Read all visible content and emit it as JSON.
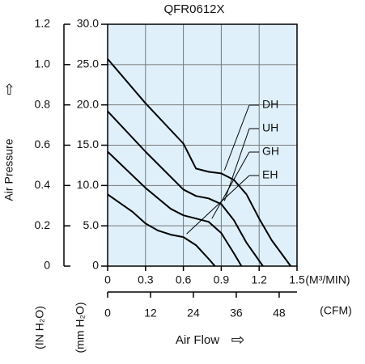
{
  "chart_data": {
    "type": "line",
    "title": "QFR0612X",
    "y_label": "Air Pressure",
    "y_unit": "(mm H₂O)",
    "y2_unit": "(IN H₂O)",
    "x_label": "Air Flow",
    "x_unit": "(M³/MIN)",
    "x2_unit": "(CFM)",
    "xlim": [
      0,
      1.5
    ],
    "xticks": [
      0,
      0.3,
      0.6,
      0.9,
      1.2,
      1.5
    ],
    "x2lim": [
      0,
      53
    ],
    "x2ticks": [
      0,
      12,
      24,
      36,
      48
    ],
    "ylim": [
      0,
      30
    ],
    "yticks": [
      0,
      {
        "value": 5,
        "label": "5.0"
      },
      {
        "value": 10,
        "label": "10.0"
      },
      {
        "value": 15,
        "label": "15.0"
      },
      {
        "value": 20,
        "label": "20.0"
      },
      {
        "value": 25,
        "label": "25.0"
      },
      {
        "value": 30,
        "label": "30.0"
      }
    ],
    "y2lim": [
      0,
      1.2
    ],
    "y2ticks": [
      0,
      0.2,
      0.4,
      0.6,
      0.8,
      {
        "value": 1,
        "label": "1.0"
      },
      1.2
    ],
    "grid": true,
    "series": [
      {
        "name": "DH",
        "color": "#000000",
        "x": [
          0,
          0.3,
          0.6,
          0.7,
          0.8,
          0.9,
          1.0,
          1.1,
          1.2,
          1.3,
          1.38,
          1.45
        ],
        "values": [
          25.7,
          20.2,
          15.2,
          12.1,
          11.7,
          11.5,
          10.7,
          8.9,
          5.9,
          3.2,
          1.5,
          0
        ]
      },
      {
        "name": "UH",
        "color": "#000000",
        "x": [
          0,
          0.3,
          0.6,
          0.7,
          0.8,
          0.9,
          1.0,
          1.1,
          1.23
        ],
        "values": [
          19.2,
          14.2,
          9.5,
          8.7,
          8.4,
          7.7,
          5.7,
          2.9,
          0
        ]
      },
      {
        "name": "GH",
        "color": "#000000",
        "x": [
          0,
          0.3,
          0.5,
          0.6,
          0.7,
          0.8,
          0.9,
          1.0,
          1.06
        ],
        "values": [
          14.2,
          9.7,
          7.1,
          6.3,
          5.9,
          5.5,
          4.1,
          1.6,
          0
        ]
      },
      {
        "name": "EH",
        "color": "#000000",
        "x": [
          0,
          0.2,
          0.3,
          0.4,
          0.5,
          0.6,
          0.7,
          0.8,
          0.85
        ],
        "values": [
          8.9,
          6.7,
          5.3,
          4.4,
          3.9,
          3.6,
          2.6,
          0.9,
          0
        ]
      }
    ]
  }
}
